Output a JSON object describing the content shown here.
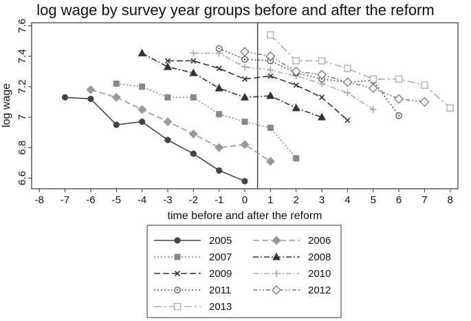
{
  "chart_data": {
    "type": "line",
    "title": "log wage by survey year groups before and after the reform",
    "xlabel": "time before and after the reform",
    "ylabel": "log wage",
    "xlim": [
      -8.3,
      8.3
    ],
    "ylim": [
      6.53,
      7.62
    ],
    "xticks": [
      -8,
      -7,
      -6,
      -5,
      -4,
      -3,
      -2,
      -1,
      0,
      1,
      2,
      3,
      4,
      5,
      6,
      7,
      8
    ],
    "xtick_labels": [
      "-8",
      "-7",
      "-6",
      "-5",
      "-4",
      "-3",
      "-2",
      "-1",
      "0",
      "1",
      "2",
      "3",
      "4",
      "5",
      "6",
      "7",
      "8"
    ],
    "yticks": [
      6.6,
      6.8,
      7,
      7.2,
      7.4,
      7.6
    ],
    "ytick_labels": [
      "6.6",
      "6.8",
      "7",
      "7.2",
      "7.4",
      "7.6"
    ],
    "reference_line_x": 0.5,
    "grid": false,
    "legend_position": "bottom",
    "colors": {
      "dark": "#444444",
      "mid": "#888888",
      "light": "#aaaaaa",
      "frame": "#333333"
    },
    "series": [
      {
        "name": "2005",
        "marker": "circle",
        "dash": "solid",
        "color": "#444444",
        "x": [
          -7,
          -6,
          -5,
          -4,
          -3,
          -2,
          -1,
          0
        ],
        "y": [
          7.13,
          7.12,
          6.95,
          6.97,
          6.85,
          6.76,
          6.65,
          6.58
        ]
      },
      {
        "name": "2006",
        "marker": "diamond",
        "dash": "longdash",
        "color": "#999999",
        "x": [
          -6,
          -5,
          -4,
          -3,
          -2,
          -1,
          0,
          1
        ],
        "y": [
          7.18,
          7.13,
          7.05,
          6.97,
          6.89,
          6.8,
          6.82,
          6.71
        ]
      },
      {
        "name": "2007",
        "marker": "square",
        "dash": "dot",
        "color": "#888888",
        "x": [
          -5,
          -4,
          -3,
          -2,
          -1,
          0,
          1,
          2
        ],
        "y": [
          7.22,
          7.2,
          7.13,
          7.13,
          7.02,
          6.97,
          6.93,
          6.73
        ]
      },
      {
        "name": "2008",
        "marker": "triangle",
        "dash": "dashdot",
        "color": "#333333",
        "x": [
          -4,
          -3,
          -2,
          -1,
          0,
          1,
          2,
          3
        ],
        "y": [
          7.42,
          7.33,
          7.29,
          7.19,
          7.13,
          7.14,
          7.06,
          7.0
        ]
      },
      {
        "name": "2009",
        "marker": "x",
        "dash": "longdash",
        "color": "#333333",
        "x": [
          -3,
          -2,
          -1,
          0,
          1,
          2,
          3,
          4
        ],
        "y": [
          7.37,
          7.37,
          7.32,
          7.25,
          7.27,
          7.21,
          7.13,
          6.98
        ]
      },
      {
        "name": "2010",
        "marker": "plus",
        "dash": "dashdot",
        "color": "#aaaaaa",
        "x": [
          -2,
          -1,
          0,
          1,
          2,
          3,
          4,
          5
        ],
        "y": [
          7.42,
          7.42,
          7.33,
          7.31,
          7.27,
          7.22,
          7.16,
          7.05
        ]
      },
      {
        "name": "2011",
        "marker": "circle-dot",
        "dash": "dot",
        "color": "#555555",
        "x": [
          -1,
          0,
          1,
          2,
          3,
          4,
          5,
          6
        ],
        "y": [
          7.45,
          7.38,
          7.37,
          7.29,
          7.25,
          7.23,
          7.24,
          7.01
        ]
      },
      {
        "name": "2012",
        "marker": "diamond-open",
        "dash": "dashdotdot",
        "color": "#777777",
        "x": [
          0,
          1,
          2,
          3,
          4,
          5,
          6,
          7
        ],
        "y": [
          7.43,
          7.4,
          7.3,
          7.28,
          7.23,
          7.19,
          7.12,
          7.1
        ]
      },
      {
        "name": "2013",
        "marker": "square-open",
        "dash": "longdashdot",
        "color": "#aaaaaa",
        "x": [
          1,
          2,
          3,
          4,
          5,
          6,
          7,
          8
        ],
        "y": [
          7.54,
          7.37,
          7.37,
          7.32,
          7.25,
          7.25,
          7.21,
          7.06
        ]
      }
    ]
  }
}
